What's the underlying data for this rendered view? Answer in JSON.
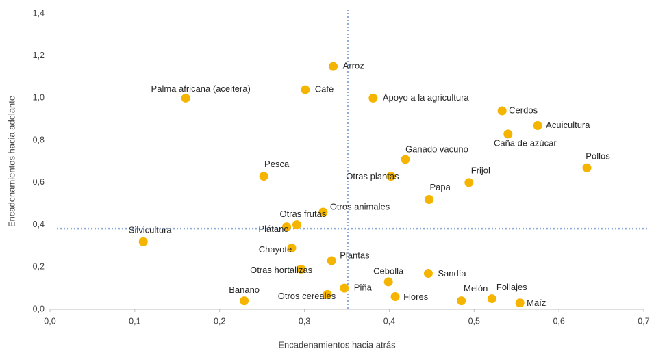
{
  "chart_data": {
    "type": "scatter",
    "x_label": "Encadenamientos hacia atrás",
    "y_label": "Encadenamientos hacia adelante",
    "labels": [
      "Arroz",
      "Café",
      "Palma africana (aceitera)",
      "Apoyo a la agricultura",
      "Cerdos",
      "Acuicultura",
      "Caña de azúcar",
      "Pollos",
      "Ganado vacuno",
      "Otras plantas",
      "Frijol",
      "Papa",
      "Pesca",
      "Otros animales",
      "Otras frutas",
      "Plátano",
      "Silvicultura",
      "Chayote",
      "Plantas",
      "Otras hortalizas",
      "Cebolla",
      "Sandía",
      "Piña",
      "Otros cereales",
      "Flores",
      "Banano",
      "Melón",
      "Follajes",
      "Maíz"
    ],
    "x": [
      0.334,
      0.301,
      0.16,
      0.381,
      0.533,
      0.575,
      0.54,
      0.633,
      0.419,
      0.402,
      0.494,
      0.447,
      0.252,
      0.322,
      0.291,
      0.279,
      0.11,
      0.285,
      0.332,
      0.296,
      0.399,
      0.446,
      0.347,
      0.327,
      0.407,
      0.229,
      0.485,
      0.521,
      0.554
    ],
    "values": [
      1.15,
      1.04,
      1.0,
      1.0,
      0.94,
      0.87,
      0.83,
      0.67,
      0.71,
      0.63,
      0.6,
      0.52,
      0.63,
      0.46,
      0.4,
      0.39,
      0.32,
      0.29,
      0.23,
      0.19,
      0.13,
      0.17,
      0.1,
      0.07,
      0.06,
      0.04,
      0.04,
      0.05,
      0.03
    ],
    "color": "#f5b400",
    "x_reference": 0.351,
    "y_reference": 0.382,
    "reference_color": "#8eaadb",
    "xlim": [
      0,
      0.7
    ],
    "ylim": [
      0,
      1.4
    ],
    "xticks": [
      {
        "value": 0,
        "label": "0,0"
      },
      {
        "value": 0.1,
        "label": "0,1"
      },
      {
        "value": 0.2,
        "label": "0,2"
      },
      {
        "value": 0.3,
        "label": "0,3"
      },
      {
        "value": 0.4,
        "label": "0,4"
      },
      {
        "value": 0.5,
        "label": "0,5"
      },
      {
        "value": 0.6,
        "label": "0,6"
      },
      {
        "value": 0.7,
        "label": "0,7"
      }
    ],
    "yticks": [
      {
        "value": 0,
        "label": "0,0"
      },
      {
        "value": 0.2,
        "label": "0,2"
      },
      {
        "value": 0.4,
        "label": "0,4"
      },
      {
        "value": 0.6,
        "label": "0,6"
      },
      {
        "value": 0.8,
        "label": "0,8"
      },
      {
        "value": 1.0,
        "label": "1,0"
      },
      {
        "value": 1.2,
        "label": "1,2"
      },
      {
        "value": 1.4,
        "label": "1,4"
      }
    ]
  }
}
